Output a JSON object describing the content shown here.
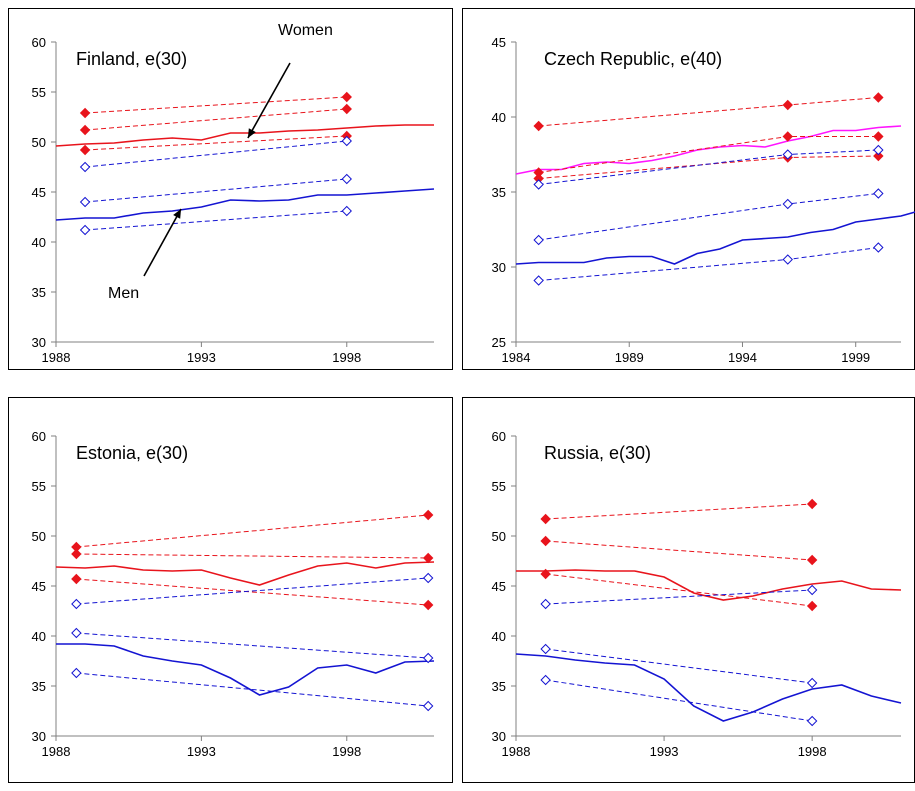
{
  "colors": {
    "women": "#e8141c",
    "men": "#1414d2",
    "magenta": "#ff14ff",
    "frame": "#000000",
    "axis": "#808080"
  },
  "chart_data": [
    {
      "type": "line",
      "title": "Finland, e(30)",
      "xlim": [
        1988,
        2001
      ],
      "ylim": [
        30,
        60
      ],
      "xticks": [
        1988,
        1993,
        1998
      ],
      "yticks": [
        30,
        35,
        40,
        45,
        50,
        55,
        60
      ],
      "annotations": [
        {
          "text": "Women",
          "pos": "upper",
          "target_x": 1994.6,
          "target_y": 50.4
        },
        {
          "text": "Men",
          "pos": "lower",
          "target_x": 1992.3,
          "target_y": 43.3
        }
      ],
      "series": [
        {
          "group": "women",
          "style": "solid",
          "points": [
            [
              1988,
              49.6
            ],
            [
              1989,
              49.8
            ],
            [
              1990,
              49.9
            ],
            [
              1991,
              50.2
            ],
            [
              1992,
              50.4
            ],
            [
              1993,
              50.2
            ],
            [
              1994,
              50.9
            ],
            [
              1995,
              50.9
            ],
            [
              1996,
              51.1
            ],
            [
              1997,
              51.2
            ],
            [
              1998,
              51.4
            ],
            [
              1999,
              51.6
            ],
            [
              2000,
              51.7
            ],
            [
              2001,
              51.7
            ]
          ]
        },
        {
          "group": "men",
          "style": "solid",
          "points": [
            [
              1988,
              42.2
            ],
            [
              1989,
              42.4
            ],
            [
              1990,
              42.4
            ],
            [
              1991,
              42.9
            ],
            [
              1992,
              43.1
            ],
            [
              1993,
              43.5
            ],
            [
              1994,
              44.2
            ],
            [
              1995,
              44.1
            ],
            [
              1996,
              44.2
            ],
            [
              1997,
              44.7
            ],
            [
              1998,
              44.7
            ],
            [
              1999,
              44.9
            ],
            [
              2000,
              45.1
            ],
            [
              2001,
              45.3
            ]
          ]
        },
        {
          "group": "women",
          "style": "dashed",
          "marker": "filled-diamond",
          "points": [
            [
              1989,
              52.9
            ],
            [
              1998,
              54.5
            ]
          ]
        },
        {
          "group": "women",
          "style": "dashed",
          "marker": "filled-diamond",
          "points": [
            [
              1989,
              51.2
            ],
            [
              1998,
              53.3
            ]
          ]
        },
        {
          "group": "women",
          "style": "dashed",
          "marker": "filled-diamond",
          "points": [
            [
              1989,
              49.2
            ],
            [
              1998,
              50.6
            ]
          ]
        },
        {
          "group": "men",
          "style": "dashed",
          "marker": "open-diamond",
          "points": [
            [
              1989,
              47.5
            ],
            [
              1998,
              50.1
            ]
          ]
        },
        {
          "group": "men",
          "style": "dashed",
          "marker": "open-diamond",
          "points": [
            [
              1989,
              44.0
            ],
            [
              1998,
              46.3
            ]
          ]
        },
        {
          "group": "men",
          "style": "dashed",
          "marker": "open-diamond",
          "points": [
            [
              1989,
              41.2
            ],
            [
              1998,
              43.1
            ]
          ]
        }
      ]
    },
    {
      "type": "line",
      "title": "Czech Republic, e(40)",
      "xlim": [
        1984,
        2001
      ],
      "ylim": [
        25,
        45
      ],
      "xticks": [
        1984,
        1989,
        1994,
        1999
      ],
      "yticks": [
        25,
        30,
        35,
        40,
        45
      ],
      "series": [
        {
          "group": "magenta",
          "style": "solid",
          "points": [
            [
              1984,
              36.2
            ],
            [
              1985,
              36.5
            ],
            [
              1986,
              36.5
            ],
            [
              1987,
              36.9
            ],
            [
              1988,
              37.0
            ],
            [
              1989,
              36.9
            ],
            [
              1990,
              37.1
            ],
            [
              1991,
              37.4
            ],
            [
              1992,
              37.8
            ],
            [
              1993,
              38.0
            ],
            [
              1994,
              38.1
            ],
            [
              1995,
              38.0
            ],
            [
              1996,
              38.4
            ],
            [
              1997,
              38.7
            ],
            [
              1998,
              39.1
            ],
            [
              1999,
              39.1
            ],
            [
              2000,
              39.3
            ],
            [
              2001,
              39.4
            ]
          ]
        },
        {
          "group": "men",
          "style": "solid",
          "points": [
            [
              1984,
              30.2
            ],
            [
              1985,
              30.3
            ],
            [
              1986,
              30.3
            ],
            [
              1987,
              30.3
            ],
            [
              1988,
              30.6
            ],
            [
              1989,
              30.7
            ],
            [
              1990,
              30.7
            ],
            [
              1991,
              30.2
            ],
            [
              1992,
              30.9
            ],
            [
              1993,
              31.2
            ],
            [
              1994,
              31.8
            ],
            [
              1995,
              31.9
            ],
            [
              1996,
              32.0
            ],
            [
              1997,
              32.3
            ],
            [
              1998,
              32.5
            ],
            [
              1999,
              33.0
            ],
            [
              2000,
              33.2
            ],
            [
              2001,
              33.4
            ],
            [
              2001.7,
              33.7
            ]
          ]
        },
        {
          "group": "women",
          "style": "dashed",
          "marker": "filled-diamond",
          "points": [
            [
              1985,
              39.4
            ],
            [
              1996,
              40.8
            ],
            [
              2000,
              41.3
            ]
          ]
        },
        {
          "group": "women",
          "style": "dashed",
          "marker": "filled-diamond",
          "points": [
            [
              1985,
              36.3
            ],
            [
              1996,
              38.7
            ],
            [
              2000,
              38.7
            ]
          ]
        },
        {
          "group": "women",
          "style": "dashed",
          "marker": "filled-diamond",
          "points": [
            [
              1985,
              35.9
            ],
            [
              1996,
              37.3
            ],
            [
              2000,
              37.4
            ]
          ]
        },
        {
          "group": "men",
          "style": "dashed",
          "marker": "open-diamond",
          "points": [
            [
              1985,
              35.5
            ],
            [
              1996,
              37.5
            ],
            [
              2000,
              37.8
            ]
          ]
        },
        {
          "group": "men",
          "style": "dashed",
          "marker": "open-diamond",
          "points": [
            [
              1985,
              31.8
            ],
            [
              1996,
              34.2
            ],
            [
              2000,
              34.9
            ]
          ]
        },
        {
          "group": "men",
          "style": "dashed",
          "marker": "open-diamond",
          "points": [
            [
              1985,
              29.1
            ],
            [
              1996,
              30.5
            ],
            [
              2000,
              31.3
            ]
          ]
        }
      ]
    },
    {
      "type": "line",
      "title": "Estonia, e(30)",
      "xlim": [
        1988,
        2001
      ],
      "ylim": [
        30,
        60
      ],
      "xticks": [
        1988,
        1993,
        1998
      ],
      "yticks": [
        30,
        35,
        40,
        45,
        50,
        55,
        60
      ],
      "series": [
        {
          "group": "women",
          "style": "solid",
          "points": [
            [
              1988,
              46.9
            ],
            [
              1989,
              46.8
            ],
            [
              1990,
              47.0
            ],
            [
              1991,
              46.6
            ],
            [
              1992,
              46.5
            ],
            [
              1993,
              46.6
            ],
            [
              1994,
              45.8
            ],
            [
              1995,
              45.1
            ],
            [
              1996,
              46.1
            ],
            [
              1997,
              47.0
            ],
            [
              1998,
              47.3
            ],
            [
              1999,
              46.8
            ],
            [
              2000,
              47.3
            ],
            [
              2001,
              47.4
            ]
          ]
        },
        {
          "group": "men",
          "style": "solid",
          "points": [
            [
              1988,
              39.2
            ],
            [
              1989,
              39.2
            ],
            [
              1990,
              39.0
            ],
            [
              1991,
              38.0
            ],
            [
              1992,
              37.5
            ],
            [
              1993,
              37.1
            ],
            [
              1994,
              35.8
            ],
            [
              1995,
              34.1
            ],
            [
              1996,
              34.9
            ],
            [
              1997,
              36.8
            ],
            [
              1998,
              37.1
            ],
            [
              1999,
              36.3
            ],
            [
              2000,
              37.4
            ],
            [
              2001,
              37.5
            ]
          ]
        },
        {
          "group": "women",
          "style": "dashed",
          "marker": "filled-diamond",
          "points": [
            [
              1988.7,
              48.9
            ],
            [
              2000.8,
              52.1
            ]
          ]
        },
        {
          "group": "women",
          "style": "dashed",
          "marker": "filled-diamond",
          "points": [
            [
              1988.7,
              48.2
            ],
            [
              2000.8,
              47.8
            ]
          ]
        },
        {
          "group": "women",
          "style": "dashed",
          "marker": "filled-diamond",
          "points": [
            [
              1988.7,
              45.7
            ],
            [
              2000.8,
              43.1
            ]
          ]
        },
        {
          "group": "men",
          "style": "dashed",
          "marker": "open-diamond",
          "points": [
            [
              1988.7,
              43.2
            ],
            [
              2000.8,
              45.8
            ]
          ]
        },
        {
          "group": "men",
          "style": "dashed",
          "marker": "open-diamond",
          "points": [
            [
              1988.7,
              40.3
            ],
            [
              2000.8,
              37.8
            ]
          ]
        },
        {
          "group": "men",
          "style": "dashed",
          "marker": "open-diamond",
          "points": [
            [
              1988.7,
              36.3
            ],
            [
              2000.8,
              33.0
            ]
          ]
        }
      ]
    },
    {
      "type": "line",
      "title": "Russia, e(30)",
      "xlim": [
        1988,
        2001
      ],
      "ylim": [
        30,
        60
      ],
      "xticks": [
        1988,
        1993,
        1998
      ],
      "yticks": [
        30,
        35,
        40,
        45,
        50,
        55,
        60
      ],
      "series": [
        {
          "group": "women",
          "style": "solid",
          "points": [
            [
              1988,
              46.5
            ],
            [
              1989,
              46.5
            ],
            [
              1990,
              46.6
            ],
            [
              1991,
              46.5
            ],
            [
              1992,
              46.5
            ],
            [
              1993,
              45.9
            ],
            [
              1994,
              44.3
            ],
            [
              1995,
              43.6
            ],
            [
              1996,
              44.0
            ],
            [
              1997,
              44.7
            ],
            [
              1998,
              45.2
            ],
            [
              1999,
              45.5
            ],
            [
              2000,
              44.7
            ],
            [
              2001,
              44.6
            ]
          ]
        },
        {
          "group": "men",
          "style": "solid",
          "points": [
            [
              1988,
              38.2
            ],
            [
              1989,
              38.0
            ],
            [
              1990,
              37.6
            ],
            [
              1991,
              37.3
            ],
            [
              1992,
              37.1
            ],
            [
              1993,
              35.7
            ],
            [
              1994,
              33.0
            ],
            [
              1995,
              31.5
            ],
            [
              1996,
              32.4
            ],
            [
              1997,
              33.7
            ],
            [
              1998,
              34.7
            ],
            [
              1999,
              35.1
            ],
            [
              2000,
              34.0
            ],
            [
              2001,
              33.3
            ]
          ]
        },
        {
          "group": "women",
          "style": "dashed",
          "marker": "filled-diamond",
          "points": [
            [
              1989,
              51.7
            ],
            [
              1998,
              53.2
            ]
          ]
        },
        {
          "group": "women",
          "style": "dashed",
          "marker": "filled-diamond",
          "points": [
            [
              1989,
              49.5
            ],
            [
              1998,
              47.6
            ]
          ]
        },
        {
          "group": "women",
          "style": "dashed",
          "marker": "filled-diamond",
          "points": [
            [
              1989,
              46.2
            ],
            [
              1998,
              43.0
            ]
          ]
        },
        {
          "group": "men",
          "style": "dashed",
          "marker": "open-diamond",
          "points": [
            [
              1989,
              43.2
            ],
            [
              1998,
              44.6
            ]
          ]
        },
        {
          "group": "men",
          "style": "dashed",
          "marker": "open-diamond",
          "points": [
            [
              1989,
              38.7
            ],
            [
              1998,
              35.3
            ]
          ]
        },
        {
          "group": "men",
          "style": "dashed",
          "marker": "open-diamond",
          "points": [
            [
              1989,
              35.6
            ],
            [
              1998,
              31.5
            ]
          ]
        }
      ]
    }
  ]
}
